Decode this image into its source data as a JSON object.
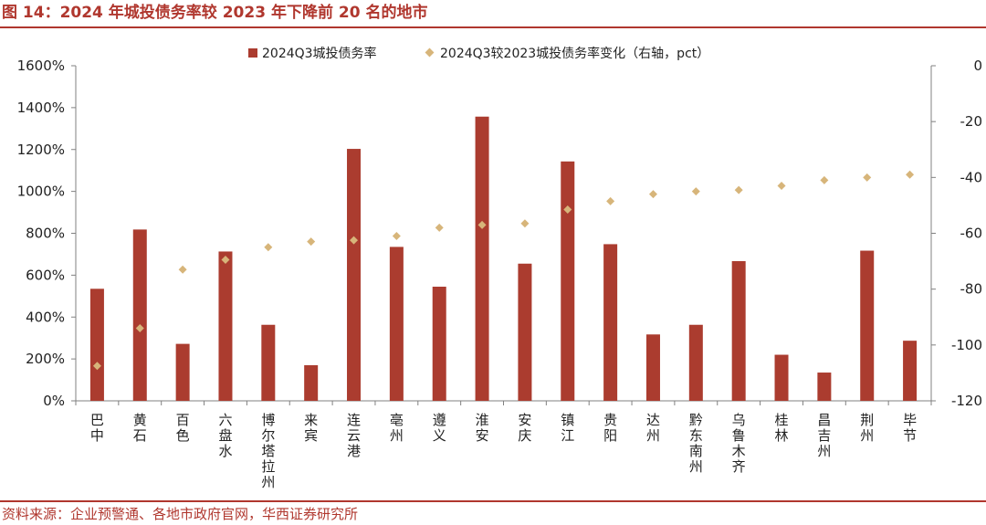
{
  "header": {
    "title": "图 14：2024 年城投债务率较 2023 年下降前 20 名的地市"
  },
  "footer": {
    "source": "资料来源：企业预警通、各地市政府官网，华西证券研究所"
  },
  "colors": {
    "accent": "#b0372e",
    "bar": "#ab3c2f",
    "marker": "#d7b57a"
  },
  "chart_data": {
    "type": "bar",
    "title": "",
    "categories": [
      "巴中",
      "黄石",
      "百色",
      "六盘水",
      "博尔塔拉州",
      "来宾",
      "连云港",
      "亳州",
      "遵义",
      "淮安",
      "安庆",
      "镇江",
      "贵阳",
      "达州",
      "黔东南州",
      "乌鲁木齐",
      "桂林",
      "昌吉州",
      "荆州",
      "毕节"
    ],
    "series": [
      {
        "name": "2024Q3城投债务率",
        "type": "bar",
        "axis": "left",
        "values": [
          535,
          818,
          272,
          713,
          363,
          170,
          1203,
          735,
          545,
          1357,
          655,
          1143,
          748,
          317,
          363,
          667,
          220,
          135,
          717,
          287
        ]
      },
      {
        "name": "2024Q3较2023城投债务率变化（右轴，pct）",
        "type": "scatter",
        "axis": "right",
        "values": [
          -107.5,
          -94,
          -73,
          -69.5,
          -65,
          -63,
          -62.5,
          -61,
          -58,
          -57,
          -56.5,
          -51.5,
          -48.5,
          -46,
          -45,
          -44.5,
          -43,
          -41,
          -40,
          -39
        ]
      }
    ],
    "yleft": {
      "range": [
        0,
        1600
      ],
      "ticks": [
        0,
        200,
        400,
        600,
        800,
        1000,
        1200,
        1400,
        1600
      ],
      "tick_labels": [
        "0%",
        "200%",
        "400%",
        "600%",
        "800%",
        "1000%",
        "1200%",
        "1400%",
        "1600%"
      ]
    },
    "yright": {
      "range": [
        -120,
        0
      ],
      "ticks": [
        0,
        -20,
        -40,
        -60,
        -80,
        -100,
        -120
      ],
      "tick_labels": [
        "0",
        "-20",
        "-40",
        "-60",
        "-80",
        "-100",
        "-120"
      ]
    },
    "legend_position": "top-center",
    "grid": false
  }
}
